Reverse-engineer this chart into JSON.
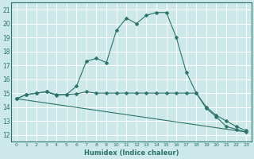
{
  "xlabel": "Humidex (Indice chaleur)",
  "bg_color": "#cce8e8",
  "line_color": "#2d7368",
  "xlim": [
    -0.5,
    23.5
  ],
  "ylim": [
    11.5,
    21.5
  ],
  "yticks": [
    12,
    13,
    14,
    15,
    16,
    17,
    18,
    19,
    20,
    21
  ],
  "xticks": [
    0,
    1,
    2,
    3,
    4,
    5,
    6,
    7,
    8,
    9,
    10,
    11,
    12,
    13,
    14,
    15,
    16,
    17,
    18,
    19,
    20,
    21,
    22,
    23
  ],
  "line1_x": [
    0,
    1,
    2,
    3,
    4,
    5,
    6,
    7,
    8,
    9,
    10,
    11,
    12,
    13,
    14,
    15,
    16,
    17,
    18,
    19,
    20,
    21,
    22,
    23
  ],
  "line1_y": [
    14.6,
    14.9,
    15.0,
    15.1,
    14.9,
    14.9,
    15.5,
    17.3,
    17.5,
    17.2,
    19.5,
    20.4,
    20.0,
    20.6,
    20.8,
    20.8,
    19.0,
    16.5,
    15.0,
    13.9,
    13.3,
    12.6,
    12.4,
    12.2
  ],
  "line2_x": [
    0,
    1,
    2,
    3,
    4,
    5,
    6,
    7,
    8,
    9,
    10,
    11,
    12,
    13,
    14,
    15,
    16,
    17,
    18,
    19,
    20,
    21,
    22,
    23
  ],
  "line2_y": [
    14.6,
    14.9,
    15.0,
    15.1,
    14.85,
    14.9,
    14.95,
    15.1,
    15.0,
    15.0,
    15.0,
    15.0,
    15.0,
    15.0,
    15.0,
    15.0,
    15.0,
    15.0,
    15.0,
    14.0,
    13.4,
    13.0,
    12.6,
    12.3
  ],
  "line3_x": [
    0,
    23
  ],
  "line3_y": [
    14.6,
    12.2
  ],
  "marker": "D",
  "markersize": 2.5,
  "lw": 0.8
}
